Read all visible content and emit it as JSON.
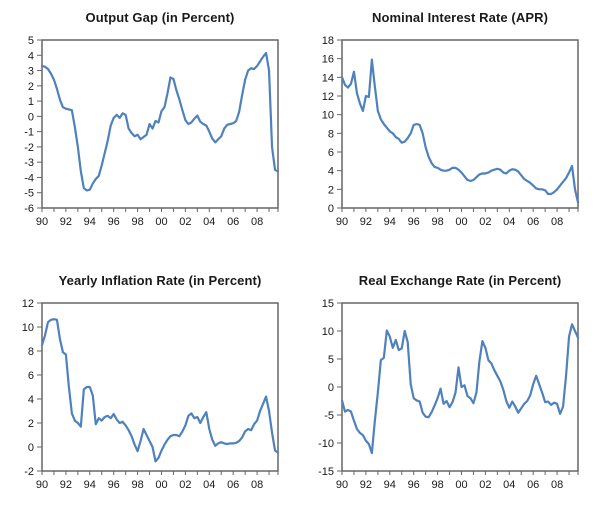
{
  "figure": {
    "background": "#ffffff",
    "layout": "2x2 grid of line charts, quarterly data 1990-2009"
  },
  "style": {
    "line_color": "#4F81BD",
    "axis_color": "#666666",
    "tick_color": "#666666",
    "label_color": "#1a1a1a",
    "title_color": "#1a1a1a"
  },
  "chart_data": [
    {
      "type": "line",
      "title": "Output Gap (in Percent)",
      "frequency": "quarterly",
      "x_start": 1990,
      "x_step_years": 0.25,
      "x_tick_labels": [
        "90",
        "92",
        "94",
        "96",
        "98",
        "00",
        "02",
        "04",
        "06",
        "08"
      ],
      "ylim": [
        -6,
        5
      ],
      "yticks": [
        5,
        4,
        3,
        2,
        1,
        0,
        -1,
        -2,
        -3,
        -4,
        -5,
        -6
      ],
      "grid": "off",
      "legend": "none",
      "values": [
        3.3,
        3.25,
        3.1,
        2.8,
        2.4,
        1.8,
        1.1,
        0.6,
        0.5,
        0.45,
        0.4,
        -0.7,
        -2.0,
        -3.6,
        -4.7,
        -4.85,
        -4.8,
        -4.4,
        -4.1,
        -3.9,
        -3.2,
        -2.4,
        -1.6,
        -0.6,
        -0.1,
        0.1,
        -0.1,
        0.2,
        0.1,
        -0.8,
        -1.1,
        -1.3,
        -1.2,
        -1.5,
        -1.35,
        -1.2,
        -0.5,
        -0.8,
        -0.3,
        -0.4,
        0.35,
        0.6,
        1.5,
        2.55,
        2.45,
        1.7,
        1.1,
        0.4,
        -0.25,
        -0.5,
        -0.4,
        -0.15,
        0.05,
        -0.35,
        -0.5,
        -0.6,
        -1.0,
        -1.45,
        -1.7,
        -1.5,
        -1.3,
        -0.8,
        -0.55,
        -0.5,
        -0.45,
        -0.3,
        0.3,
        1.4,
        2.4,
        3.0,
        3.15,
        3.1,
        3.3,
        3.6,
        3.9,
        4.15,
        3.0,
        -2.0,
        -3.5,
        -3.6
      ]
    },
    {
      "type": "line",
      "title": "Nominal Interest Rate (APR)",
      "frequency": "quarterly",
      "x_start": 1990,
      "x_step_years": 0.25,
      "x_tick_labels": [
        "90",
        "92",
        "94",
        "96",
        "98",
        "00",
        "02",
        "04",
        "06",
        "08"
      ],
      "ylim": [
        0,
        18
      ],
      "yticks": [
        18,
        16,
        14,
        12,
        10,
        8,
        6,
        4,
        2,
        0
      ],
      "grid": "off",
      "legend": "none",
      "values": [
        14.0,
        13.2,
        12.9,
        13.3,
        14.6,
        12.3,
        11.2,
        10.4,
        12.0,
        11.9,
        15.9,
        13.0,
        10.4,
        9.5,
        9.0,
        8.6,
        8.2,
        8.0,
        7.6,
        7.4,
        7.0,
        7.1,
        7.5,
        8.0,
        8.9,
        9.0,
        8.9,
        8.0,
        6.5,
        5.5,
        4.8,
        4.4,
        4.3,
        4.1,
        4.0,
        4.0,
        4.1,
        4.3,
        4.3,
        4.1,
        3.8,
        3.4,
        3.0,
        2.9,
        3.0,
        3.3,
        3.6,
        3.7,
        3.7,
        3.8,
        4.0,
        4.1,
        4.2,
        4.1,
        3.8,
        3.7,
        4.0,
        4.15,
        4.1,
        3.9,
        3.5,
        3.1,
        2.9,
        2.7,
        2.4,
        2.1,
        2.0,
        2.0,
        1.9,
        1.5,
        1.5,
        1.7,
        2.0,
        2.4,
        2.8,
        3.2,
        3.8,
        4.5,
        2.0,
        0.6
      ]
    },
    {
      "type": "line",
      "title": "Yearly Inflation Rate (in Percent)",
      "frequency": "quarterly",
      "x_start": 1990,
      "x_step_years": 0.25,
      "x_tick_labels": [
        "90",
        "92",
        "94",
        "96",
        "98",
        "00",
        "02",
        "04",
        "06",
        "08"
      ],
      "ylim": [
        -2,
        12
      ],
      "yticks": [
        12,
        10,
        8,
        6,
        4,
        2,
        0,
        -2
      ],
      "grid": "off",
      "legend": "none",
      "values": [
        8.5,
        9.3,
        10.4,
        10.6,
        10.65,
        10.6,
        9.0,
        7.9,
        7.7,
        5.0,
        2.8,
        2.2,
        2.0,
        1.7,
        4.8,
        5.0,
        5.0,
        4.3,
        1.9,
        2.4,
        2.2,
        2.5,
        2.6,
        2.4,
        2.75,
        2.3,
        2.0,
        2.1,
        1.8,
        1.4,
        0.9,
        0.2,
        -0.35,
        0.5,
        1.5,
        1.0,
        0.5,
        0.0,
        -1.2,
        -0.9,
        -0.3,
        0.2,
        0.6,
        0.9,
        1.0,
        1.0,
        0.9,
        1.3,
        1.8,
        2.6,
        2.8,
        2.4,
        2.5,
        2.0,
        2.5,
        2.9,
        1.5,
        0.6,
        0.1,
        0.3,
        0.4,
        0.3,
        0.25,
        0.3,
        0.3,
        0.35,
        0.5,
        0.8,
        1.3,
        1.5,
        1.4,
        1.9,
        2.2,
        3.0,
        3.6,
        4.2,
        3.0,
        1.2,
        -0.3,
        -0.45
      ]
    },
    {
      "type": "line",
      "title": "Real Exchange Rate (in Percent)",
      "frequency": "quarterly",
      "x_start": 1990,
      "x_step_years": 0.25,
      "x_tick_labels": [
        "90",
        "92",
        "94",
        "96",
        "98",
        "00",
        "02",
        "04",
        "06",
        "08"
      ],
      "ylim": [
        -15,
        15
      ],
      "yticks": [
        15,
        10,
        5,
        0,
        -5,
        -10,
        -15
      ],
      "grid": "off",
      "legend": "none",
      "values": [
        -2.4,
        -4.4,
        -4.1,
        -4.4,
        -6.0,
        -7.5,
        -8.2,
        -8.6,
        -9.6,
        -10.2,
        -11.8,
        -6.0,
        -1.0,
        4.8,
        5.2,
        10.1,
        9.0,
        7.0,
        8.4,
        6.6,
        6.9,
        10.0,
        8.0,
        0.5,
        -2.0,
        -2.4,
        -2.6,
        -4.6,
        -5.3,
        -5.4,
        -4.5,
        -3.3,
        -2.0,
        -0.3,
        -3.0,
        -2.5,
        -3.6,
        -2.7,
        -1.0,
        3.5,
        0.0,
        0.3,
        -1.6,
        -2.0,
        -2.9,
        -1.0,
        4.6,
        8.2,
        7.0,
        4.8,
        4.2,
        3.0,
        2.0,
        1.0,
        -0.5,
        -2.5,
        -3.7,
        -2.6,
        -3.5,
        -4.6,
        -3.8,
        -3.0,
        -2.5,
        -1.5,
        0.5,
        2.0,
        0.5,
        -1.0,
        -2.7,
        -2.6,
        -3.2,
        -2.8,
        -3.0,
        -4.8,
        -3.5,
        2.0,
        9.0,
        11.2,
        10.0,
        8.8
      ]
    }
  ]
}
